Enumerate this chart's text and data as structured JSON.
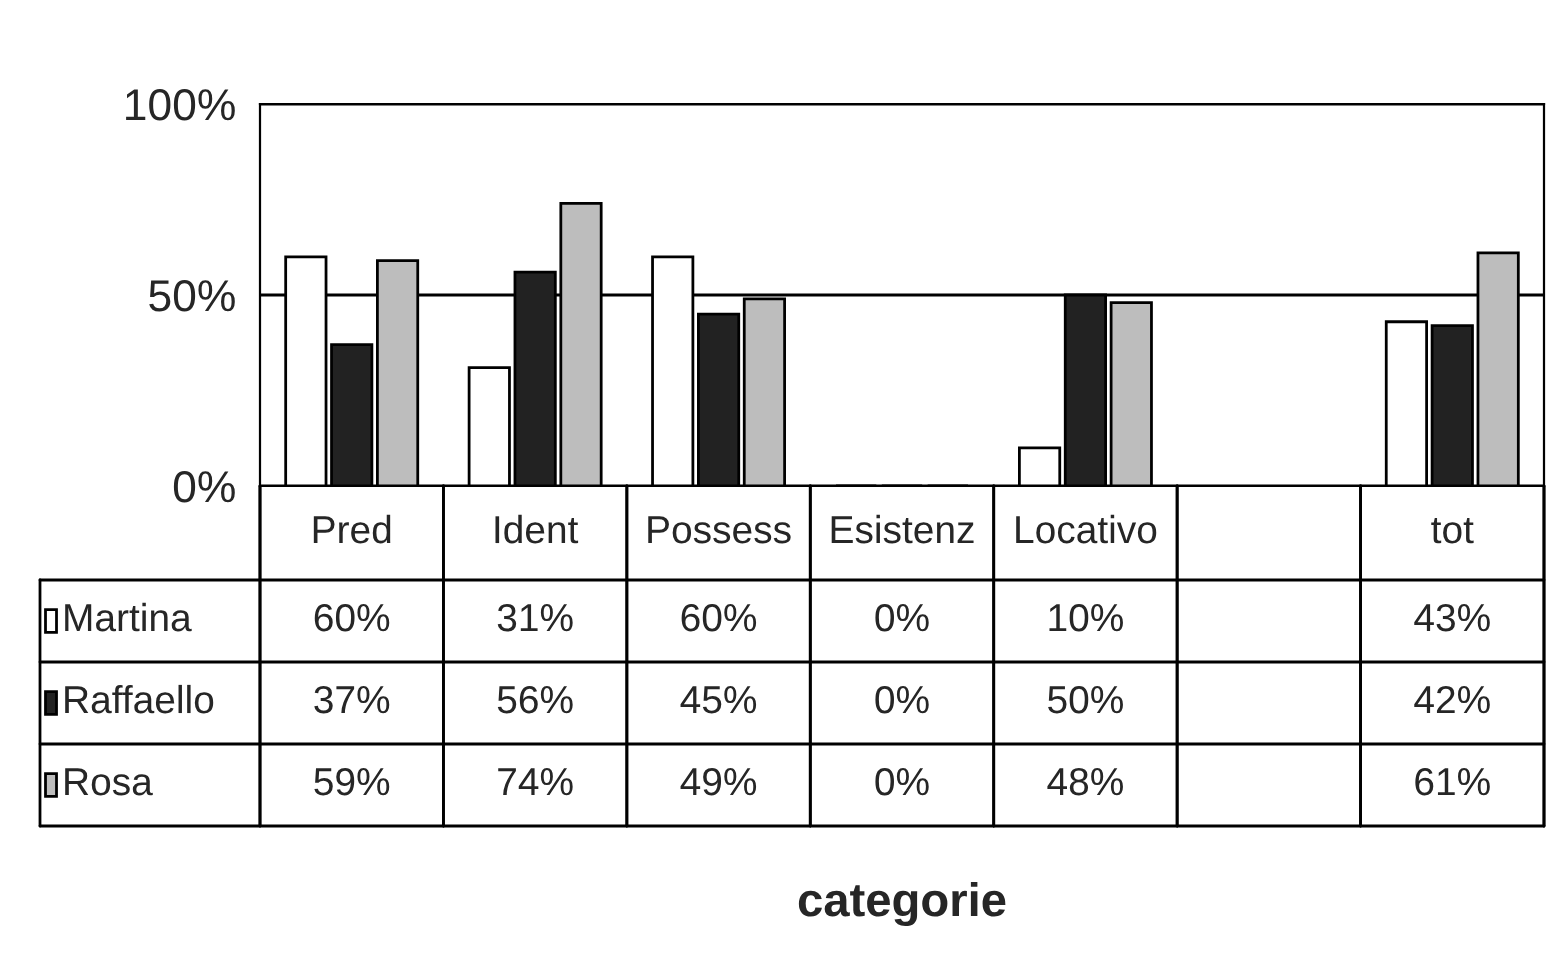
{
  "chart_data": {
    "type": "bar",
    "annotations": [
      "categorie"
    ],
    "legend": "bottom left",
    "categories": [
      "Pred",
      "Ident",
      "Possess",
      "Esistenz",
      "Locativo",
      null,
      "tot"
    ],
    "series": [
      {
        "name": "Martina",
        "color": "#ffffff",
        "values": [
          60,
          31,
          60,
          0,
          10,
          null,
          43
        ],
        "value_labels": [
          "60%",
          "31%",
          "60%",
          "0%",
          "10%",
          null,
          "43%"
        ]
      },
      {
        "name": "Raffaello",
        "color": "#222222",
        "values": [
          37,
          56,
          45,
          0,
          50,
          null,
          42
        ],
        "value_labels": [
          "37%",
          "56%",
          "45%",
          "0%",
          "50%",
          null,
          "42%"
        ]
      },
      {
        "name": "Rosa",
        "color": "#bdbdbd",
        "values": [
          59,
          74,
          49,
          0,
          48,
          null,
          61
        ],
        "value_labels": [
          "59%",
          "74%",
          "49%",
          "0%",
          "48%",
          null,
          "61%"
        ]
      }
    ],
    "ylim": [
      0,
      100
    ],
    "yticks": [
      {
        "value": 0,
        "label": "0%"
      },
      {
        "value": 50,
        "label": "50%"
      },
      {
        "value": 100,
        "label": "100%"
      }
    ],
    "grid": "y"
  }
}
